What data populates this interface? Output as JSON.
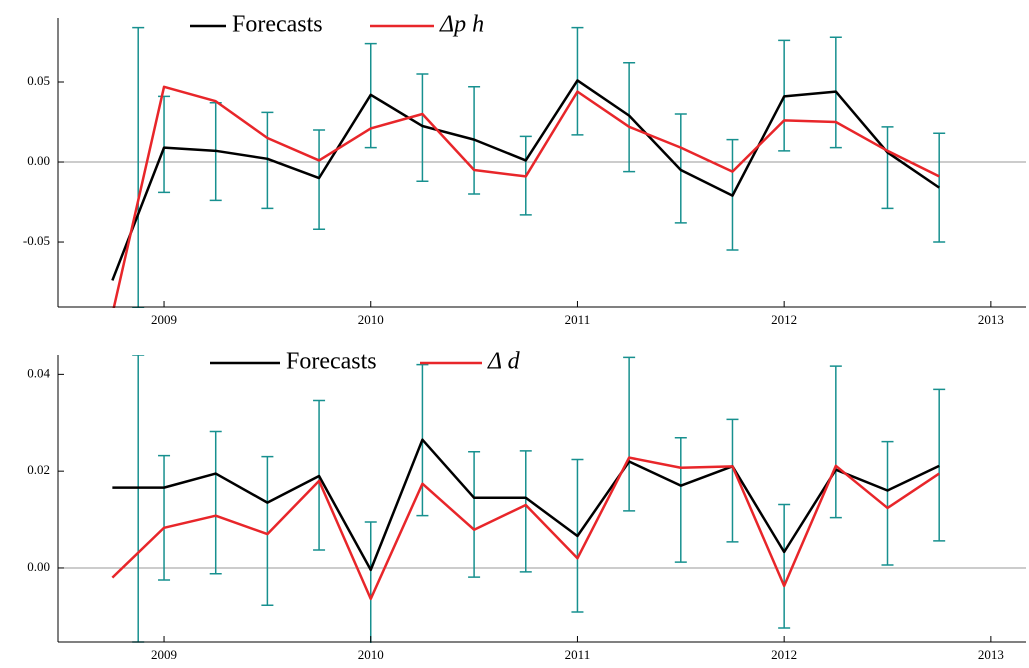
{
  "chart_data": [
    {
      "type": "line",
      "x": [
        2008.75,
        2009,
        2009.25,
        2009.5,
        2009.75,
        2010,
        2010.25,
        2010.5,
        2010.75,
        2011,
        2011.25,
        2011.5,
        2011.75,
        2012,
        2012.25,
        2012.5,
        2012.75
      ],
      "series": [
        {
          "name": "Forecasts",
          "color": "#000000",
          "values": [
            -0.074,
            0.009,
            0.007,
            0.002,
            -0.01,
            0.042,
            0.0225,
            0.014,
            0.001,
            0.051,
            0.029,
            -0.005,
            -0.021,
            0.041,
            0.044,
            0.006,
            -0.016
          ]
        },
        {
          "name": "Δp h",
          "color": "#e8262a",
          "values": [
            -0.095,
            0.047,
            0.038,
            0.015,
            0.001,
            0.021,
            0.03,
            -0.005,
            -0.009,
            0.044,
            0.022,
            0.009,
            -0.006,
            0.026,
            0.025,
            0.007,
            -0.009
          ]
        }
      ],
      "error_bars": {
        "color": "#17908f",
        "x": [
          2008.875,
          2009,
          2009.25,
          2009.5,
          2009.75,
          2010,
          2010.25,
          2010.5,
          2010.75,
          2011,
          2011.25,
          2011.5,
          2011.75,
          2012,
          2012.25,
          2012.5,
          2012.75
        ],
        "low": [
          -0.091,
          -0.019,
          -0.024,
          -0.029,
          -0.042,
          0.009,
          -0.012,
          -0.02,
          -0.033,
          0.017,
          -0.006,
          -0.038,
          -0.055,
          0.007,
          0.009,
          -0.029,
          -0.05
        ],
        "high": [
          0.084,
          0.041,
          0.037,
          0.031,
          0.02,
          0.074,
          0.055,
          0.047,
          0.016,
          0.084,
          0.062,
          0.03,
          0.014,
          0.076,
          0.078,
          0.022,
          0.018
        ]
      },
      "xlim": [
        2008.487,
        2013.17
      ],
      "xticks": [
        2009,
        2010,
        2011,
        2012,
        2013
      ],
      "ylim": [
        -0.0906,
        0.09
      ],
      "yticks": [
        -0.05,
        {
          "value": 0,
          "label": "0.00"
        },
        0.05
      ]
    },
    {
      "type": "line",
      "x": [
        2008.75,
        2009,
        2009.25,
        2009.5,
        2009.75,
        2010,
        2010.25,
        2010.5,
        2010.75,
        2011,
        2011.25,
        2011.5,
        2011.75,
        2012,
        2012.25,
        2012.5,
        2012.75
      ],
      "series": [
        {
          "name": "Forecasts",
          "color": "#000000",
          "values": [
            0.0166,
            0.0166,
            0.0195,
            0.0135,
            0.019,
            -0.0004,
            0.0265,
            0.0145,
            0.0145,
            0.0066,
            0.022,
            0.017,
            0.021,
            0.0033,
            0.0203,
            0.016,
            0.0211
          ]
        },
        {
          "name": "Δ d",
          "color": "#e8262a",
          "values": [
            -0.002,
            0.0083,
            0.0108,
            0.007,
            0.018,
            -0.0064,
            0.0174,
            0.0079,
            0.013,
            0.002,
            0.0228,
            0.0207,
            0.021,
            -0.0037,
            0.0211,
            0.0124,
            0.0195
          ]
        }
      ],
      "error_bars": {
        "color": "#17908f",
        "x": [
          2008.875,
          2009,
          2009.25,
          2009.5,
          2009.75,
          2010,
          2010.25,
          2010.5,
          2010.75,
          2011,
          2011.25,
          2011.5,
          2011.75,
          2012,
          2012.25,
          2012.5,
          2012.75
        ],
        "low": [
          -0.0153,
          -0.0025,
          -0.0012,
          -0.0077,
          0.0037,
          -0.016,
          0.0108,
          -0.0019,
          -0.0008,
          -0.0091,
          0.0118,
          0.0012,
          0.0054,
          -0.0124,
          0.0104,
          0.0006,
          0.0056
        ],
        "high": [
          0.044,
          0.0232,
          0.0282,
          0.023,
          0.0346,
          0.0095,
          0.042,
          0.024,
          0.0242,
          0.0224,
          0.0435,
          0.0269,
          0.0307,
          0.0131,
          0.0417,
          0.0261,
          0.0369
        ]
      },
      "xlim": [
        2008.487,
        2013.17
      ],
      "xticks": [
        2009,
        2010,
        2011,
        2012,
        2013
      ],
      "ylim": [
        -0.0153,
        0.044
      ],
      "yticks": [
        {
          "value": 0,
          "label": "0.00"
        },
        0.02,
        0.04
      ]
    }
  ]
}
